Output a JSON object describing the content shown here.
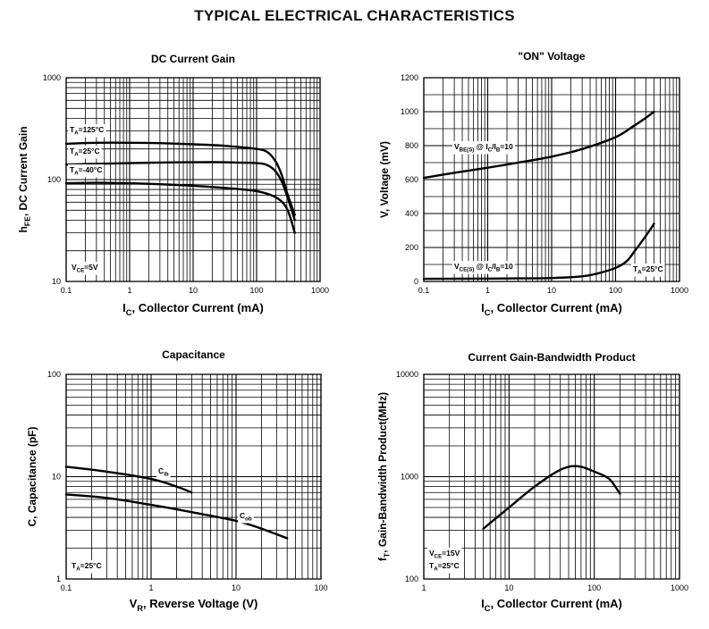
{
  "page": {
    "title": "TYPICAL ELECTRICAL CHARACTERISTICS"
  },
  "chart_data": [
    {
      "id": "dc-current-gain",
      "type": "line",
      "title": "DC Current Gain",
      "xlabel": {
        "main": "I",
        "sub": "C",
        "rest": ", Collector Current (mA)"
      },
      "ylabel": {
        "main": "h",
        "sub": "FE",
        "rest": ", DC Current Gain"
      },
      "xscale": "log",
      "yscale": "log",
      "xlim": [
        0.1,
        1000
      ],
      "ylim": [
        10,
        1000
      ],
      "xticks": [
        0.1,
        1,
        10,
        100,
        1000
      ],
      "xtick_labels": [
        "0.1",
        "1",
        "10",
        "100",
        "1000"
      ],
      "yticks": [
        10,
        100,
        1000
      ],
      "ytick_labels": [
        "10",
        "100",
        "1000"
      ],
      "grid": true,
      "series": [
        {
          "name": "TA=125°C",
          "label_main": "T",
          "label_sub": "A",
          "label_rest": "=125°C",
          "x": [
            0.1,
            0.3,
            1,
            3,
            10,
            30,
            100,
            150,
            200,
            250,
            300,
            400
          ],
          "y": [
            225,
            230,
            230,
            228,
            222,
            215,
            200,
            185,
            150,
            110,
            75,
            45
          ]
        },
        {
          "name": "TA=25°C",
          "label_main": "T",
          "label_sub": "A",
          "label_rest": "=25°C",
          "x": [
            0.1,
            0.3,
            1,
            3,
            10,
            30,
            100,
            150,
            200,
            250,
            300,
            400
          ],
          "y": [
            140,
            143,
            145,
            147,
            148,
            148,
            145,
            138,
            120,
            95,
            70,
            40
          ]
        },
        {
          "name": "TA=-40°C",
          "label_main": "T",
          "label_sub": "A",
          "label_rest": "=-40°C",
          "x": [
            0.1,
            0.3,
            1,
            3,
            10,
            30,
            100,
            200,
            300,
            400
          ],
          "y": [
            92,
            93,
            92,
            90,
            87,
            83,
            77,
            67,
            52,
            30
          ]
        }
      ],
      "annotations": [
        {
          "main": "V",
          "sub": "CE",
          "rest": "=5V"
        }
      ]
    },
    {
      "id": "on-voltage",
      "type": "line",
      "title": "\"ON\" Voltage",
      "xlabel": {
        "main": "I",
        "sub": "C",
        "rest": ", Collector Current (mA)"
      },
      "ylabel": {
        "main": "V",
        "sub": "",
        "rest": ", Voltage (mV)"
      },
      "xscale": "log",
      "yscale": "linear",
      "xlim": [
        0.1,
        1000
      ],
      "ylim": [
        0,
        1200
      ],
      "xticks": [
        0.1,
        1,
        10,
        100,
        1000
      ],
      "xtick_labels": [
        "0.1",
        "1",
        "10",
        "100",
        "1000"
      ],
      "yticks": [
        0,
        200,
        400,
        600,
        800,
        1000,
        1200
      ],
      "ytick_labels": [
        "0",
        "200",
        "400",
        "600",
        "800",
        "1000",
        "1200"
      ],
      "grid": true,
      "series": [
        {
          "name": "VBE(S) @ IC/IB=10",
          "label_parts": [
            [
              "V",
              "BE(S)"
            ],
            [
              " @ I",
              "C"
            ],
            [
              "/I",
              "B"
            ],
            [
              "=10",
              ""
            ]
          ],
          "x": [
            0.1,
            0.3,
            1,
            3,
            10,
            30,
            100,
            200,
            300,
            400
          ],
          "y": [
            610,
            640,
            670,
            700,
            735,
            780,
            850,
            920,
            965,
            1000
          ]
        },
        {
          "name": "VCE(S) @ IC/IB=10",
          "label_parts": [
            [
              "V",
              "CE(S)"
            ],
            [
              " @ I",
              "C"
            ],
            [
              "/I",
              "B"
            ],
            [
              "=10",
              ""
            ]
          ],
          "x": [
            0.1,
            1,
            3,
            10,
            30,
            50,
            100,
            150,
            200,
            300,
            400
          ],
          "y": [
            15,
            17,
            18,
            20,
            30,
            45,
            80,
            120,
            180,
            270,
            340
          ]
        }
      ],
      "annotations": [
        {
          "main": "T",
          "sub": "A",
          "rest": "=25°C"
        }
      ]
    },
    {
      "id": "capacitance",
      "type": "line",
      "title": "Capacitance",
      "xlabel": {
        "main": "V",
        "sub": "R",
        "rest": ", Reverse Voltage (V)"
      },
      "ylabel": {
        "main": "C",
        "sub": "",
        "rest": ", Capacitance (pF)"
      },
      "xscale": "log",
      "yscale": "log",
      "xlim": [
        0.1,
        100
      ],
      "ylim": [
        1,
        100
      ],
      "xticks": [
        0.1,
        1,
        10,
        100
      ],
      "xtick_labels": [
        "0.1",
        "1",
        "10",
        "100"
      ],
      "yticks": [
        1,
        10,
        100
      ],
      "ytick_labels": [
        "1",
        "10",
        "100"
      ],
      "grid": true,
      "series": [
        {
          "name": "Cib",
          "label_main": "C",
          "label_sub": "ib",
          "label_rest": "",
          "x": [
            0.1,
            0.3,
            1,
            2,
            3
          ],
          "y": [
            12.5,
            11.2,
            9.5,
            8,
            7
          ]
        },
        {
          "name": "Cob",
          "label_main": "C",
          "label_sub": "ob",
          "label_rest": "",
          "x": [
            0.1,
            0.3,
            1,
            3,
            10,
            20,
            40
          ],
          "y": [
            6.7,
            6.2,
            5.3,
            4.5,
            3.7,
            3.1,
            2.5
          ]
        }
      ],
      "annotations": [
        {
          "main": "T",
          "sub": "A",
          "rest": "=25°C"
        }
      ]
    },
    {
      "id": "gain-bandwidth",
      "type": "line",
      "title": "Current Gain-Bandwidth Product",
      "xlabel": {
        "main": "I",
        "sub": "C",
        "rest": ", Collector Current (mA)"
      },
      "ylabel": {
        "main": "f",
        "sub": "T",
        "rest": ", Gain-Bandwidth  Product(MHz)"
      },
      "xscale": "log",
      "yscale": "log",
      "xlim": [
        1,
        1000
      ],
      "ylim": [
        100,
        10000
      ],
      "xticks": [
        1,
        10,
        100,
        1000
      ],
      "xtick_labels": [
        "1",
        "10",
        "100",
        "1000"
      ],
      "yticks": [
        100,
        1000,
        10000
      ],
      "ytick_labels": [
        "100",
        "1000",
        "10000"
      ],
      "grid": true,
      "series": [
        {
          "name": "fT",
          "x": [
            5,
            10,
            20,
            35,
            50,
            70,
            100,
            150,
            200
          ],
          "y": [
            310,
            500,
            800,
            1100,
            1250,
            1250,
            1120,
            950,
            680
          ]
        }
      ],
      "annotations": [
        {
          "main": "V",
          "sub": "CE",
          "rest": "=15V"
        },
        {
          "main": "T",
          "sub": "A",
          "rest": "=25°C"
        }
      ]
    }
  ]
}
